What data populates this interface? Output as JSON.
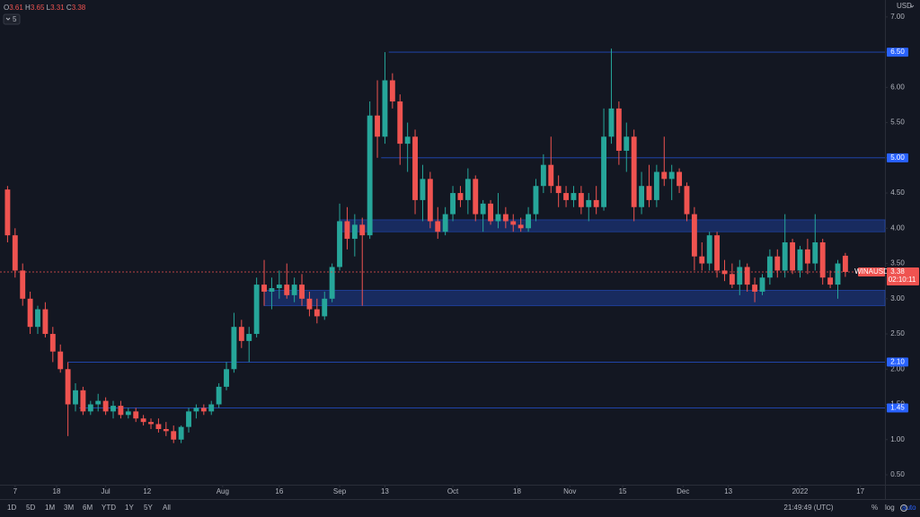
{
  "chart_data": {
    "type": "candlestick",
    "ohlc_labels": [
      "O",
      "H",
      "L",
      "C"
    ],
    "currency": "USD",
    "indicator_count": "5",
    "symbol": "WINAUSD",
    "countdown": "02:10:11",
    "clock": "21:49:49 (UTC)",
    "ranges": [
      "1D",
      "5D",
      "1M",
      "3M",
      "6M",
      "YTD",
      "1Y",
      "5Y",
      "All"
    ],
    "toggles": [
      "%",
      "log",
      "auto"
    ],
    "up_color": "#26a69a",
    "down_color": "#ef5350",
    "level_color": "#2962ff",
    "x": [
      -2,
      0,
      2,
      4,
      6,
      8,
      10,
      12,
      14,
      16,
      18,
      20,
      22,
      24,
      26,
      28,
      30,
      32,
      34,
      36,
      38,
      40,
      42,
      44,
      46,
      48,
      50,
      52,
      54,
      56,
      58,
      60,
      62,
      64,
      66,
      68,
      70,
      72,
      74,
      76,
      78,
      80,
      82,
      84,
      86,
      88,
      90,
      92,
      94,
      96,
      98,
      100,
      102,
      104,
      106,
      108,
      110,
      112,
      114,
      116,
      118,
      120,
      122,
      124,
      126,
      128,
      130,
      132,
      134,
      136,
      138,
      140,
      142,
      144,
      146,
      148,
      150,
      152,
      154,
      156,
      158,
      160,
      162,
      164,
      166,
      168,
      170,
      172,
      174,
      176,
      178,
      180,
      182,
      184,
      186,
      188,
      190,
      192,
      194,
      196,
      198,
      200,
      202,
      204,
      206,
      208,
      210,
      212,
      214,
      216,
      218,
      220
    ],
    "open": [
      4.55,
      3.9,
      3.4,
      3.0,
      2.6,
      2.85,
      2.5,
      2.25,
      2.0,
      1.5,
      1.7,
      1.4,
      1.5,
      1.55,
      1.4,
      1.48,
      1.35,
      1.4,
      1.3,
      1.25,
      1.22,
      1.15,
      1.12,
      1.0,
      1.18,
      1.4,
      1.45,
      1.4,
      1.5,
      1.75,
      2.0,
      2.6,
      2.4,
      2.5,
      3.2,
      3.1,
      3.15,
      3.2,
      3.05,
      3.2,
      3.0,
      2.85,
      2.75,
      3.0,
      3.45,
      4.1,
      3.85,
      4.05,
      3.9,
      5.6,
      5.3,
      6.1,
      5.8,
      5.2,
      5.3,
      4.4,
      4.7,
      4.1,
      3.95,
      4.2,
      4.5,
      4.4,
      4.7,
      4.2,
      4.35,
      4.1,
      4.2,
      4.1,
      4.05,
      4.0,
      4.2,
      4.6,
      4.9,
      4.6,
      4.5,
      4.4,
      4.5,
      4.3,
      4.4,
      4.3,
      5.3,
      5.7,
      5.1,
      5.3,
      4.3,
      4.6,
      4.4,
      4.8,
      4.7,
      4.8,
      4.6,
      4.2,
      3.6,
      3.5,
      3.9,
      3.4,
      3.35,
      3.2,
      3.45,
      3.2,
      3.1,
      3.3,
      3.6,
      3.4,
      3.8,
      3.4,
      3.7,
      3.5,
      3.8,
      3.3,
      3.2,
      3.61
    ],
    "high": [
      4.6,
      4.0,
      3.5,
      3.1,
      2.9,
      2.95,
      2.6,
      2.35,
      2.1,
      1.8,
      1.75,
      1.55,
      1.65,
      1.6,
      1.55,
      1.55,
      1.45,
      1.45,
      1.35,
      1.3,
      1.3,
      1.25,
      1.2,
      1.2,
      1.45,
      1.5,
      1.5,
      1.55,
      1.8,
      2.1,
      2.8,
      2.7,
      2.6,
      3.3,
      3.55,
      3.3,
      3.4,
      3.5,
      3.3,
      3.35,
      3.1,
      3.0,
      3.1,
      3.5,
      4.35,
      4.3,
      4.2,
      4.15,
      5.8,
      6.1,
      6.5,
      6.2,
      5.9,
      5.5,
      5.4,
      4.9,
      4.8,
      4.3,
      4.3,
      4.6,
      4.6,
      4.85,
      4.75,
      4.4,
      4.4,
      4.5,
      4.3,
      4.2,
      4.15,
      4.3,
      4.7,
      5.05,
      5.3,
      4.75,
      4.6,
      4.6,
      4.6,
      4.5,
      4.6,
      5.7,
      6.55,
      5.8,
      5.5,
      5.4,
      4.8,
      4.9,
      4.9,
      5.3,
      4.9,
      4.85,
      4.65,
      4.3,
      3.8,
      3.95,
      3.95,
      3.55,
      3.5,
      3.55,
      3.5,
      3.3,
      3.35,
      3.7,
      3.7,
      4.2,
      3.85,
      3.75,
      3.85,
      4.2,
      3.85,
      3.4,
      3.55,
      3.65
    ],
    "low": [
      3.8,
      3.3,
      2.9,
      2.5,
      2.5,
      2.45,
      2.1,
      1.95,
      1.05,
      1.4,
      1.35,
      1.35,
      1.4,
      1.35,
      1.3,
      1.3,
      1.3,
      1.25,
      1.2,
      1.15,
      1.1,
      1.05,
      0.95,
      0.95,
      1.1,
      1.3,
      1.35,
      1.35,
      1.45,
      1.7,
      1.95,
      2.3,
      2.1,
      2.45,
      2.9,
      2.85,
      3.0,
      3.0,
      2.95,
      2.9,
      2.75,
      2.65,
      2.7,
      2.95,
      3.4,
      3.7,
      3.6,
      2.9,
      3.85,
      5.0,
      5.2,
      5.7,
      4.9,
      4.8,
      4.2,
      4.1,
      4.0,
      3.85,
      3.9,
      4.1,
      4.3,
      4.2,
      4.1,
      3.95,
      4.05,
      4.0,
      4.0,
      3.95,
      3.95,
      3.95,
      4.1,
      4.5,
      4.5,
      4.3,
      4.3,
      4.3,
      4.2,
      4.1,
      4.2,
      4.25,
      5.2,
      4.9,
      4.8,
      4.1,
      4.2,
      4.3,
      4.3,
      4.6,
      4.4,
      4.5,
      4.1,
      3.4,
      3.4,
      3.4,
      3.3,
      3.25,
      3.15,
      3.05,
      3.1,
      2.95,
      3.05,
      3.2,
      3.3,
      3.3,
      3.35,
      3.3,
      3.35,
      3.4,
      3.2,
      3.15,
      3.0,
      3.31
    ],
    "close": [
      3.9,
      3.4,
      3.0,
      2.6,
      2.85,
      2.5,
      2.25,
      2.0,
      1.5,
      1.7,
      1.4,
      1.5,
      1.55,
      1.4,
      1.48,
      1.35,
      1.4,
      1.3,
      1.25,
      1.22,
      1.15,
      1.12,
      1.0,
      1.18,
      1.4,
      1.45,
      1.4,
      1.5,
      1.75,
      2.0,
      2.6,
      2.4,
      2.5,
      3.2,
      3.1,
      3.15,
      3.2,
      3.05,
      3.2,
      3.0,
      2.85,
      2.75,
      3.0,
      3.45,
      4.1,
      3.85,
      4.05,
      3.9,
      5.6,
      5.3,
      6.1,
      5.8,
      5.2,
      5.3,
      4.4,
      4.7,
      4.1,
      3.95,
      4.2,
      4.5,
      4.4,
      4.7,
      4.2,
      4.35,
      4.1,
      4.2,
      4.1,
      4.05,
      4.0,
      4.2,
      4.6,
      4.9,
      4.6,
      4.5,
      4.4,
      4.5,
      4.3,
      4.4,
      4.3,
      5.3,
      5.7,
      5.1,
      5.3,
      4.3,
      4.6,
      4.4,
      4.8,
      4.7,
      4.8,
      4.6,
      4.2,
      3.6,
      3.5,
      3.9,
      3.4,
      3.35,
      3.2,
      3.45,
      3.2,
      3.1,
      3.3,
      3.6,
      3.4,
      3.8,
      3.4,
      3.7,
      3.5,
      3.8,
      3.3,
      3.2,
      3.5,
      3.38
    ],
    "levels": [
      {
        "value": 6.5,
        "label": "6.50",
        "from": 99
      },
      {
        "value": 5.0,
        "label": "5.00",
        "from": 97
      },
      {
        "value": 2.1,
        "label": "2.10",
        "from": 14
      },
      {
        "value": 1.45,
        "label": "1.45",
        "from": 17
      }
    ],
    "zones": [
      {
        "low": 3.95,
        "high": 4.12,
        "from": 86
      },
      {
        "low": 2.9,
        "high": 3.12,
        "from": 66
      }
    ],
    "xlim": [
      -4,
      230.5
    ],
    "xticks": [
      {
        "value": 0,
        "label": "7"
      },
      {
        "value": 11,
        "label": "18"
      },
      {
        "value": 24,
        "label": "Jul"
      },
      {
        "value": 35,
        "label": "12"
      },
      {
        "value": 55,
        "label": "Aug"
      },
      {
        "value": 70,
        "label": "16"
      },
      {
        "value": 86,
        "label": "Sep"
      },
      {
        "value": 98,
        "label": "13"
      },
      {
        "value": 116,
        "label": "Oct"
      },
      {
        "value": 133,
        "label": "18"
      },
      {
        "value": 147,
        "label": "Nov"
      },
      {
        "value": 161,
        "label": "15"
      },
      {
        "value": 177,
        "label": "Dec"
      },
      {
        "value": 189,
        "label": "13"
      },
      {
        "value": 208,
        "label": "2022"
      },
      {
        "value": 224,
        "label": "17"
      }
    ],
    "ylim": [
      0.36,
      7.24
    ],
    "yticks": [
      {
        "value": 0.5,
        "label": "0.50"
      },
      {
        "value": 1,
        "label": "1.00"
      },
      {
        "value": 1.5,
        "label": "1.50"
      },
      {
        "value": 2,
        "label": "2.00"
      },
      {
        "value": 2.5,
        "label": "2.50"
      },
      {
        "value": 3,
        "label": "3.00"
      },
      {
        "value": 3.5,
        "label": "3.50"
      },
      {
        "value": 4,
        "label": "4.00"
      },
      {
        "value": 4.5,
        "label": "4.50"
      },
      {
        "value": 5,
        "label": "5.00"
      },
      {
        "value": 5.5,
        "label": "5.50"
      },
      {
        "value": 6,
        "label": "6.00"
      },
      {
        "value": 6.5,
        "label": "6.50"
      },
      {
        "value": 7,
        "label": "7.00"
      }
    ]
  }
}
